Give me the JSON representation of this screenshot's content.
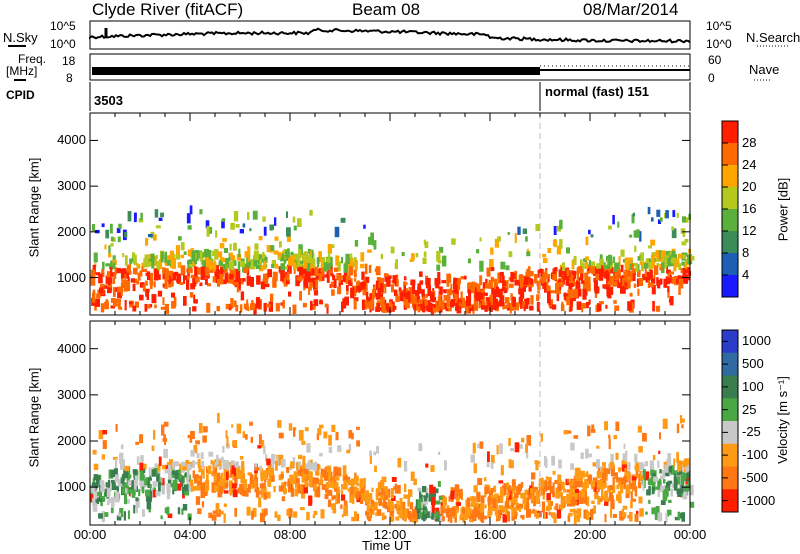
{
  "header": {
    "station": "Clyde River (fitACF)",
    "beam": "Beam 08",
    "date": "08/Mar/2014"
  },
  "noise_panel": {
    "left_label": "N.Sky",
    "right_label": "N.Search",
    "left_ticks": [
      "10^5",
      "10^0"
    ],
    "right_ticks": [
      "10^5",
      "10^0"
    ]
  },
  "freq_panel": {
    "left_label_line1": "Freq.",
    "left_label_line2": "[MHz]",
    "right_label": "Nave",
    "left_ticks": [
      "18",
      "8"
    ],
    "right_ticks": [
      "60",
      "0"
    ]
  },
  "cpid_panel": {
    "label": "CPID",
    "first_id": "3503",
    "second_id": "normal (fast)  151"
  },
  "chart_data": [
    {
      "type": "heatmap",
      "title": "",
      "ylabel": "Slant Range [km]",
      "xlabel": "Time UT",
      "ylim": [
        180,
        4600
      ],
      "xlim_hours": [
        0,
        24
      ],
      "y_ticks": [
        "1000",
        "2000",
        "3000",
        "4000"
      ],
      "x_ticks": [
        "00:00",
        "04:00",
        "08:00",
        "12:00",
        "16:00",
        "20:00",
        "00:00"
      ],
      "colorbar_label": "Power [dB]",
      "colorbar_ticks": [
        "4",
        "8",
        "12",
        "16",
        "20",
        "24",
        "28"
      ],
      "colors": [
        "#1a1aff",
        "#1e5fb4",
        "#3c8c5a",
        "#59b03c",
        "#b4c81e",
        "#ffa500",
        "#ff6a00",
        "#ff1e00"
      ]
    },
    {
      "type": "heatmap",
      "title": "",
      "ylabel": "Slant Range [km]",
      "xlabel": "Time UT",
      "ylim": [
        180,
        4600
      ],
      "xlim_hours": [
        0,
        24
      ],
      "y_ticks": [
        "1000",
        "2000",
        "3000",
        "4000"
      ],
      "x_ticks": [
        "00:00",
        "04:00",
        "08:00",
        "12:00",
        "16:00",
        "20:00",
        "00:00"
      ],
      "colorbar_label": "Velocity [m s⁻¹]",
      "colorbar_ticks": [
        "1000",
        "500",
        "100",
        "25",
        "-25",
        "-100",
        "-500",
        "-1000"
      ],
      "colors": [
        "#2a3cc8",
        "#2f6aa0",
        "#3a7d4f",
        "#4aa844",
        "#c8c8c8",
        "#ff9a14",
        "#ff7814",
        "#ff1e00"
      ]
    }
  ]
}
